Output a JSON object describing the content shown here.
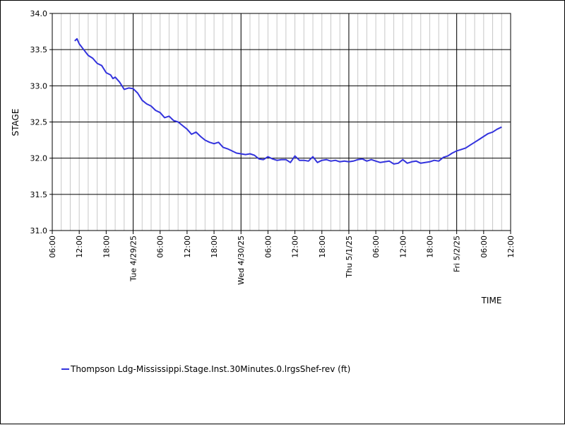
{
  "chart_data": {
    "type": "line",
    "xlabel": "TIME",
    "ylabel": "STAGE",
    "ylim": [
      31.0,
      34.0
    ],
    "xlim": [
      "2025-04-28 06:00",
      "2025-05-02 12:00"
    ],
    "grid": true,
    "legend_position": "bottom-left",
    "series_color": "#3333dd",
    "y_ticks": [
      "31.0",
      "31.5",
      "32.0",
      "32.5",
      "33.0",
      "33.5",
      "34.0"
    ],
    "x_ticks": [
      {
        "time": "2025-04-28 06:00",
        "label": "06:00",
        "major": false
      },
      {
        "time": "2025-04-28 12:00",
        "label": "12:00",
        "major": false
      },
      {
        "time": "2025-04-28 18:00",
        "label": "18:00",
        "major": false
      },
      {
        "time": "2025-04-29 00:00",
        "label": "Tue 4/29/25",
        "major": true
      },
      {
        "time": "2025-04-29 06:00",
        "label": "06:00",
        "major": false
      },
      {
        "time": "2025-04-29 12:00",
        "label": "12:00",
        "major": false
      },
      {
        "time": "2025-04-29 18:00",
        "label": "18:00",
        "major": false
      },
      {
        "time": "2025-04-30 00:00",
        "label": "Wed 4/30/25",
        "major": true
      },
      {
        "time": "2025-04-30 06:00",
        "label": "06:00",
        "major": false
      },
      {
        "time": "2025-04-30 12:00",
        "label": "12:00",
        "major": false
      },
      {
        "time": "2025-04-30 18:00",
        "label": "18:00",
        "major": false
      },
      {
        "time": "2025-05-01 00:00",
        "label": "Thu 5/1/25",
        "major": true
      },
      {
        "time": "2025-05-01 06:00",
        "label": "06:00",
        "major": false
      },
      {
        "time": "2025-05-01 12:00",
        "label": "12:00",
        "major": false
      },
      {
        "time": "2025-05-01 18:00",
        "label": "18:00",
        "major": false
      },
      {
        "time": "2025-05-02 00:00",
        "label": "Fri 5/2/25",
        "major": true
      },
      {
        "time": "2025-05-02 06:00",
        "label": "06:00",
        "major": false
      },
      {
        "time": "2025-05-02 12:00",
        "label": "12:00",
        "major": false
      }
    ],
    "series": [
      {
        "name": "Thompson Ldg-Mississippi.Stage.Inst.30Minutes.0.lrgsShef-rev (ft)",
        "x": [
          "2025-04-28 11:00",
          "2025-04-28 11:30",
          "2025-04-28 12:00",
          "2025-04-28 13:00",
          "2025-04-28 14:00",
          "2025-04-28 15:00",
          "2025-04-28 16:00",
          "2025-04-28 17:00",
          "2025-04-28 18:00",
          "2025-04-28 19:00",
          "2025-04-28 19:30",
          "2025-04-28 20:00",
          "2025-04-28 21:00",
          "2025-04-28 22:00",
          "2025-04-28 23:00",
          "2025-04-29 00:00",
          "2025-04-29 01:00",
          "2025-04-29 02:00",
          "2025-04-29 03:00",
          "2025-04-29 04:00",
          "2025-04-29 05:00",
          "2025-04-29 06:00",
          "2025-04-29 07:00",
          "2025-04-29 08:00",
          "2025-04-29 09:00",
          "2025-04-29 10:00",
          "2025-04-29 11:00",
          "2025-04-29 12:00",
          "2025-04-29 13:00",
          "2025-04-29 14:00",
          "2025-04-29 15:00",
          "2025-04-29 16:00",
          "2025-04-29 17:00",
          "2025-04-29 18:00",
          "2025-04-29 19:00",
          "2025-04-29 20:00",
          "2025-04-29 21:00",
          "2025-04-29 22:00",
          "2025-04-29 23:00",
          "2025-04-30 00:00",
          "2025-04-30 01:00",
          "2025-04-30 02:00",
          "2025-04-30 03:00",
          "2025-04-30 04:00",
          "2025-04-30 05:00",
          "2025-04-30 06:00",
          "2025-04-30 07:00",
          "2025-04-30 08:00",
          "2025-04-30 09:00",
          "2025-04-30 10:00",
          "2025-04-30 11:00",
          "2025-04-30 12:00",
          "2025-04-30 13:00",
          "2025-04-30 14:00",
          "2025-04-30 15:00",
          "2025-04-30 16:00",
          "2025-04-30 17:00",
          "2025-04-30 18:00",
          "2025-04-30 19:00",
          "2025-04-30 20:00",
          "2025-04-30 21:00",
          "2025-04-30 22:00",
          "2025-04-30 23:00",
          "2025-05-01 00:00",
          "2025-05-01 01:00",
          "2025-05-01 02:00",
          "2025-05-01 03:00",
          "2025-05-01 04:00",
          "2025-05-01 05:00",
          "2025-05-01 06:00",
          "2025-05-01 07:00",
          "2025-05-01 08:00",
          "2025-05-01 09:00",
          "2025-05-01 10:00",
          "2025-05-01 11:00",
          "2025-05-01 12:00",
          "2025-05-01 13:00",
          "2025-05-01 14:00",
          "2025-05-01 15:00",
          "2025-05-01 16:00",
          "2025-05-01 17:00",
          "2025-05-01 18:00",
          "2025-05-01 19:00",
          "2025-05-01 20:00",
          "2025-05-01 21:00",
          "2025-05-01 22:00",
          "2025-05-01 23:00",
          "2025-05-02 00:00",
          "2025-05-02 01:00",
          "2025-05-02 02:00",
          "2025-05-02 03:00",
          "2025-05-02 04:00",
          "2025-05-02 05:00",
          "2025-05-02 06:00",
          "2025-05-02 07:00",
          "2025-05-02 08:00",
          "2025-05-02 09:00",
          "2025-05-02 10:00"
        ],
        "y": [
          33.62,
          33.65,
          33.58,
          33.5,
          33.42,
          33.38,
          33.31,
          33.28,
          33.18,
          33.15,
          33.1,
          33.12,
          33.05,
          32.95,
          32.97,
          32.96,
          32.9,
          32.8,
          32.75,
          32.72,
          32.66,
          32.63,
          32.56,
          32.58,
          32.52,
          32.5,
          32.45,
          32.4,
          32.33,
          32.36,
          32.3,
          32.25,
          32.22,
          32.2,
          32.22,
          32.15,
          32.13,
          32.1,
          32.07,
          32.06,
          32.05,
          32.06,
          32.04,
          31.99,
          31.98,
          32.02,
          31.99,
          31.97,
          31.98,
          31.98,
          31.94,
          32.03,
          31.97,
          31.97,
          31.96,
          32.02,
          31.94,
          31.97,
          31.98,
          31.96,
          31.97,
          31.95,
          31.96,
          31.95,
          31.96,
          31.98,
          31.99,
          31.96,
          31.98,
          31.96,
          31.94,
          31.95,
          31.96,
          31.92,
          31.93,
          31.98,
          31.93,
          31.95,
          31.96,
          31.93,
          31.94,
          31.95,
          31.97,
          31.96,
          32.01,
          32.03,
          32.07,
          32.1,
          32.12,
          32.14,
          32.18,
          32.22,
          32.26,
          32.3,
          32.34,
          32.36,
          32.4,
          32.43
        ]
      }
    ]
  }
}
